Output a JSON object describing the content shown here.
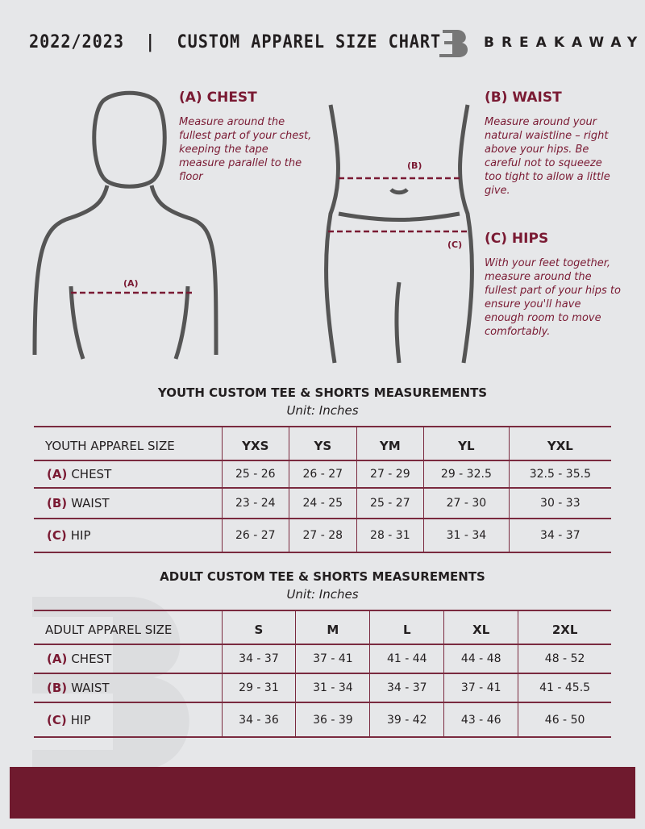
{
  "header": {
    "title": "2022/2023  |  CUSTOM APPAREL SIZE CHART",
    "brand": "BREAKAWAY"
  },
  "chest": {
    "heading": "(A) CHEST",
    "text": "Measure around the fullest part of your chest, keeping the tape measure parallel to the floor",
    "marker": "(A)"
  },
  "waist": {
    "heading": "(B) WAIST",
    "text": "Measure around your natural waistline – right above your hips. Be careful not to squeeze too tight to allow a little give.",
    "marker": "(B)"
  },
  "hips": {
    "heading": "(C) HIPS",
    "text": "With your feet together, measure around the fullest part of your hips to ensure you'll have enough room to move comfortably.",
    "marker": "(C)"
  },
  "colors": {
    "accent": "#6f1a2e",
    "background": "#e6e7e9"
  },
  "tables": [
    {
      "title": "YOUTH CUSTOM TEE & SHORTS MEASUREMENTS",
      "unit": "Unit: Inches",
      "header": "YOUTH APPAREL SIZE",
      "sizes": [
        "YXS",
        "YS",
        "YM",
        "YL",
        "YXL"
      ],
      "rows": [
        {
          "code": "(A)",
          "name": "CHEST",
          "values": [
            "25 - 26",
            "26 - 27",
            "27 - 29",
            "29 - 32.5",
            "32.5 - 35.5"
          ]
        },
        {
          "code": "(B)",
          "name": "WAIST",
          "values": [
            "23 - 24",
            "24 - 25",
            "25 - 27",
            "27 - 30",
            "30 - 33"
          ]
        },
        {
          "code": "(C)",
          "name": "HIP",
          "values": [
            "26 - 27",
            "27 - 28",
            "28 - 31",
            "31 - 34",
            "34 - 37"
          ]
        }
      ]
    },
    {
      "title": "ADULT CUSTOM TEE & SHORTS MEASUREMENTS",
      "unit": "Unit: Inches",
      "header": "ADULT APPAREL SIZE",
      "sizes": [
        "S",
        "M",
        "L",
        "XL",
        "2XL"
      ],
      "rows": [
        {
          "code": "(A)",
          "name": "CHEST",
          "values": [
            "34 - 37",
            "37 - 41",
            "41 - 44",
            "44 - 48",
            "48 - 52"
          ]
        },
        {
          "code": "(B)",
          "name": "WAIST",
          "values": [
            "29 - 31",
            "31 - 34",
            "34 - 37",
            "37 - 41",
            "41 - 45.5"
          ]
        },
        {
          "code": "(C)",
          "name": "HIP",
          "values": [
            "34 - 36",
            "36 - 39",
            "39 - 42",
            "43 - 46",
            "46 - 50"
          ]
        }
      ]
    }
  ]
}
